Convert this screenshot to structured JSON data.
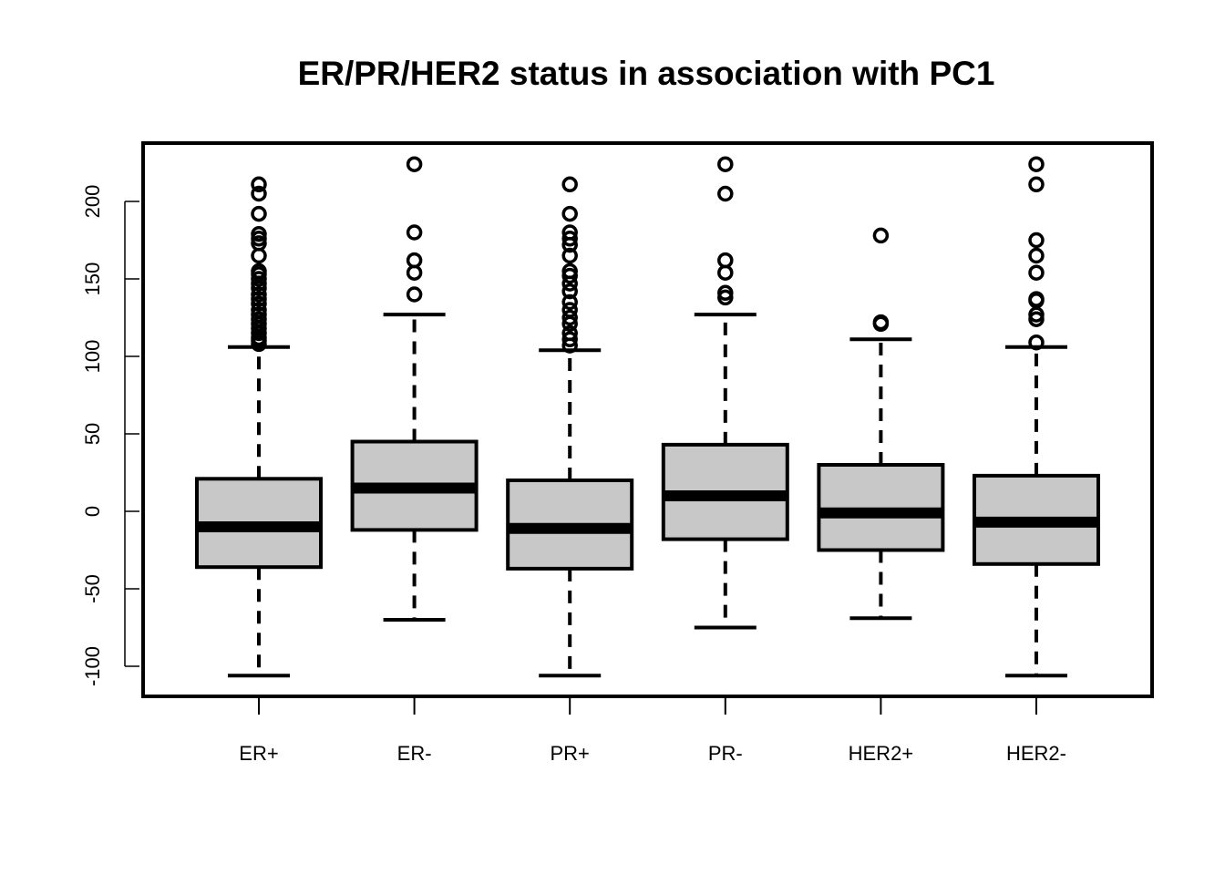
{
  "chart_data": {
    "type": "box",
    "title": "ER/PR/HER2 status in association with PC1",
    "xlabel": "",
    "ylabel": "",
    "ylim": [
      -118,
      224
    ],
    "y_ticks": [
      -100,
      -50,
      0,
      50,
      100,
      150,
      200
    ],
    "y_tick_labels": [
      "-100",
      "-50",
      "0",
      "50",
      "100",
      "150",
      "200"
    ],
    "grid": false,
    "legend": "none",
    "colors": {
      "box_fill": "#c8c8c8",
      "stroke": "#000000",
      "background": "#ffffff"
    },
    "categories": [
      "ER+",
      "ER-",
      "PR+",
      "PR-",
      "HER2+",
      "HER2-"
    ],
    "boxes": [
      {
        "label": "ER+",
        "whisker_low": -106,
        "q1": -36,
        "median": -10,
        "q3": 21,
        "whisker_high": 106,
        "outliers": [
          108,
          110,
          112,
          115,
          118,
          121,
          124,
          127,
          130,
          134,
          137,
          140,
          144,
          147,
          150,
          153,
          155,
          165,
          173,
          176,
          179,
          192,
          205,
          211
        ]
      },
      {
        "label": "ER-",
        "whisker_low": -70,
        "q1": -12,
        "median": 15,
        "q3": 45,
        "whisker_high": 127,
        "outliers": [
          140,
          154,
          162,
          180,
          224
        ]
      },
      {
        "label": "PR+",
        "whisker_low": -106,
        "q1": -37,
        "median": -11,
        "q3": 20,
        "whisker_high": 104,
        "outliers": [
          107,
          111,
          115,
          121,
          125,
          130,
          135,
          142,
          147,
          152,
          155,
          165,
          172,
          176,
          180,
          192,
          211
        ]
      },
      {
        "label": "PR-",
        "whisker_low": -75,
        "q1": -18,
        "median": 10,
        "q3": 43,
        "whisker_high": 127,
        "outliers": [
          138,
          141,
          154,
          162,
          205,
          224
        ]
      },
      {
        "label": "HER2+",
        "whisker_low": -69,
        "q1": -25,
        "median": -1,
        "q3": 30,
        "whisker_high": 111,
        "outliers": [
          121,
          122,
          178
        ]
      },
      {
        "label": "HER2-",
        "whisker_low": -106,
        "q1": -34,
        "median": -7,
        "q3": 23,
        "whisker_high": 106,
        "outliers": [
          109,
          124,
          127,
          136,
          137,
          154,
          165,
          175,
          211,
          224
        ]
      }
    ]
  }
}
